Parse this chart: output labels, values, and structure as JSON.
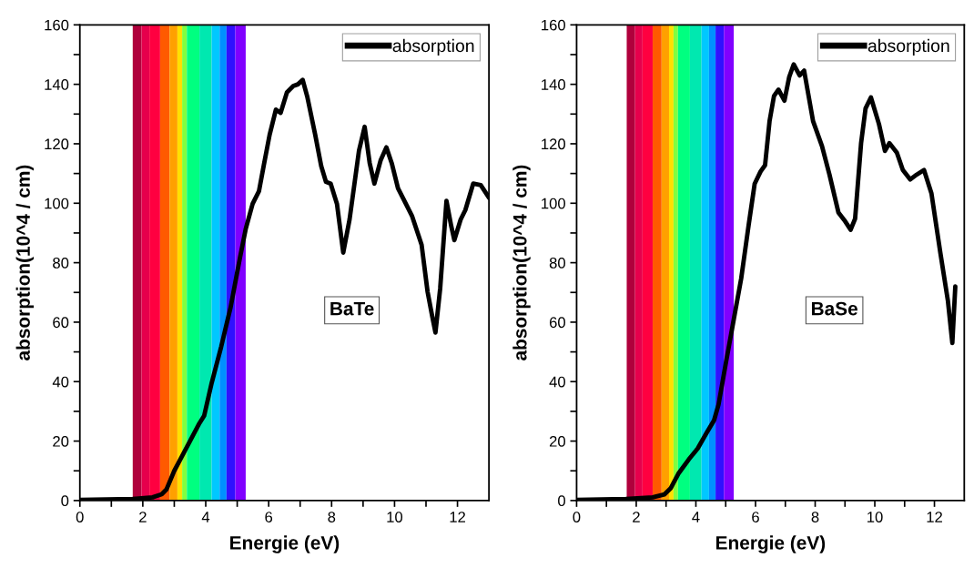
{
  "chart_data": [
    {
      "type": "line",
      "xlabel": "Energie (eV)",
      "ylabel": "absorption(10^4 / cm)",
      "annotations": [
        "BaTe"
      ],
      "legend": "top right",
      "grid": false,
      "line_style": "solid",
      "marker": "none",
      "xlim": [
        0,
        13
      ],
      "ylim": [
        0,
        160
      ],
      "xticks": [
        0,
        {
          "value": 1,
          "label": null
        },
        2,
        {
          "value": 3,
          "label": null
        },
        4,
        {
          "value": 5,
          "label": null
        },
        6,
        {
          "value": 7,
          "label": null
        },
        8,
        {
          "value": 9,
          "label": null
        },
        10,
        {
          "value": 11,
          "label": null
        },
        12
      ],
      "yticks": [
        0,
        {
          "value": 10,
          "label": null
        },
        20,
        {
          "value": 30,
          "label": null
        },
        40,
        {
          "value": 50,
          "label": null
        },
        60,
        {
          "value": 70,
          "label": null
        },
        80,
        {
          "value": 90,
          "label": null
        },
        100,
        {
          "value": 110,
          "label": null
        },
        120,
        {
          "value": 130,
          "label": null
        },
        140,
        {
          "value": 150,
          "label": null
        },
        160
      ],
      "bands": [
        {
          "axis": "x",
          "from": 1.68,
          "to": 1.96,
          "color": "#b0003c"
        },
        {
          "axis": "x",
          "from": 1.96,
          "to": 2.21,
          "color": "#e6004c"
        },
        {
          "axis": "x",
          "from": 2.21,
          "to": 2.55,
          "color": "#ff0040"
        },
        {
          "axis": "x",
          "from": 2.55,
          "to": 2.85,
          "color": "#ff5a00"
        },
        {
          "axis": "x",
          "from": 2.85,
          "to": 3.1,
          "color": "#ffa000"
        },
        {
          "axis": "x",
          "from": 3.1,
          "to": 3.25,
          "color": "#ffe000"
        },
        {
          "axis": "x",
          "from": 3.25,
          "to": 3.4,
          "color": "#80ff40"
        },
        {
          "axis": "x",
          "from": 3.4,
          "to": 3.8,
          "color": "#00ff80"
        },
        {
          "axis": "x",
          "from": 3.8,
          "to": 4.19,
          "color": "#00e8b0"
        },
        {
          "axis": "x",
          "from": 4.19,
          "to": 4.44,
          "color": "#00c8ff"
        },
        {
          "axis": "x",
          "from": 4.44,
          "to": 4.66,
          "color": "#0090ff"
        },
        {
          "axis": "x",
          "from": 4.66,
          "to": 4.94,
          "color": "#3010ff"
        },
        {
          "axis": "x",
          "from": 4.94,
          "to": 5.27,
          "color": "#8000ff"
        }
      ],
      "series": [
        {
          "name": "absorption",
          "color": "#000000",
          "x": [
            0,
            1.68,
            2.31,
            2.6,
            2.75,
            3.0,
            3.4,
            3.8,
            3.95,
            4.19,
            4.49,
            4.79,
            5.09,
            5.27,
            5.49,
            5.69,
            5.84,
            6.03,
            6.23,
            6.38,
            6.58,
            6.78,
            6.93,
            7.08,
            7.23,
            7.48,
            7.67,
            7.82,
            7.97,
            8.17,
            8.37,
            8.57,
            8.87,
            9.05,
            9.21,
            9.36,
            9.56,
            9.74,
            9.91,
            10.11,
            10.36,
            10.56,
            10.76,
            10.86,
            11.05,
            11.2,
            11.3,
            11.45,
            11.65,
            11.8,
            11.9,
            12.1,
            12.25,
            12.5,
            12.74,
            13.0
          ],
          "values": [
            0.2,
            0.5,
            1.1,
            2.1,
            3.7,
            10,
            18,
            26,
            28.5,
            39.6,
            51.7,
            65,
            81.8,
            91.3,
            99.8,
            104,
            112.5,
            123,
            131.5,
            130.4,
            137.3,
            139.4,
            140,
            141.5,
            135.7,
            123,
            112.5,
            107.2,
            106.6,
            99.8,
            83.4,
            94.5,
            117.7,
            125.7,
            113.5,
            106.6,
            114.5,
            118.8,
            113.5,
            105,
            99.8,
            95.6,
            89.2,
            86,
            70.2,
            61.8,
            56.5,
            71.3,
            100.8,
            92.4,
            87.6,
            94.5,
            97.7,
            106.6,
            106.1,
            101.9
          ]
        }
      ]
    },
    {
      "type": "line",
      "xlabel": "Energie (eV)",
      "ylabel": "absorption(10^4 / cm)",
      "annotations": [
        "BaSe"
      ],
      "legend": "top right",
      "grid": false,
      "line_style": "solid",
      "marker": "none",
      "xlim": [
        0,
        13
      ],
      "ylim": [
        0,
        160
      ],
      "xticks": [
        0,
        {
          "value": 1,
          "label": null
        },
        2,
        {
          "value": 3,
          "label": null
        },
        4,
        {
          "value": 5,
          "label": null
        },
        6,
        {
          "value": 7,
          "label": null
        },
        8,
        {
          "value": 9,
          "label": null
        },
        10,
        {
          "value": 11,
          "label": null
        },
        12
      ],
      "yticks": [
        0,
        {
          "value": 10,
          "label": null
        },
        20,
        {
          "value": 30,
          "label": null
        },
        40,
        {
          "value": 50,
          "label": null
        },
        60,
        {
          "value": 70,
          "label": null
        },
        80,
        {
          "value": 90,
          "label": null
        },
        100,
        {
          "value": 110,
          "label": null
        },
        120,
        {
          "value": 130,
          "label": null
        },
        140,
        {
          "value": 150,
          "label": null
        },
        160
      ],
      "bands": [
        {
          "axis": "x",
          "from": 1.68,
          "to": 1.96,
          "color": "#b0003c"
        },
        {
          "axis": "x",
          "from": 1.96,
          "to": 2.21,
          "color": "#e6004c"
        },
        {
          "axis": "x",
          "from": 2.21,
          "to": 2.55,
          "color": "#ff0040"
        },
        {
          "axis": "x",
          "from": 2.55,
          "to": 2.85,
          "color": "#ff5a00"
        },
        {
          "axis": "x",
          "from": 2.85,
          "to": 3.1,
          "color": "#ffa000"
        },
        {
          "axis": "x",
          "from": 3.1,
          "to": 3.25,
          "color": "#ffe000"
        },
        {
          "axis": "x",
          "from": 3.25,
          "to": 3.4,
          "color": "#80ff40"
        },
        {
          "axis": "x",
          "from": 3.4,
          "to": 3.8,
          "color": "#00ff80"
        },
        {
          "axis": "x",
          "from": 3.8,
          "to": 4.19,
          "color": "#00e8b0"
        },
        {
          "axis": "x",
          "from": 4.19,
          "to": 4.44,
          "color": "#00c8ff"
        },
        {
          "axis": "x",
          "from": 4.44,
          "to": 4.66,
          "color": "#0090ff"
        },
        {
          "axis": "x",
          "from": 4.66,
          "to": 4.94,
          "color": "#3010ff"
        },
        {
          "axis": "x",
          "from": 4.94,
          "to": 5.27,
          "color": "#8000ff"
        }
      ],
      "series": [
        {
          "name": "absorption",
          "color": "#000000",
          "x": [
            0,
            1.65,
            2.55,
            2.95,
            3.16,
            3.41,
            3.76,
            4.06,
            4.36,
            4.61,
            4.76,
            5.02,
            5.27,
            5.52,
            5.77,
            5.97,
            6.17,
            6.32,
            6.47,
            6.62,
            6.77,
            6.97,
            7.13,
            7.28,
            7.48,
            7.63,
            7.78,
            7.93,
            8.23,
            8.48,
            8.78,
            8.98,
            9.19,
            9.34,
            9.54,
            9.69,
            9.87,
            10.14,
            10.34,
            10.49,
            10.74,
            10.94,
            11.19,
            11.4,
            11.65,
            11.9,
            12.2,
            12.45,
            12.6,
            12.7
          ],
          "values": [
            0.2,
            0.5,
            1.1,
            2.1,
            4.2,
            9,
            13.8,
            17.5,
            22.8,
            27,
            32.3,
            47.1,
            60.9,
            74.7,
            92.7,
            106.5,
            110.7,
            112.8,
            127.6,
            136.1,
            138.2,
            134.5,
            142.5,
            146.7,
            143,
            144.6,
            136.1,
            127.6,
            119.2,
            109.6,
            96.9,
            94.3,
            91.1,
            94.8,
            120.2,
            131.9,
            135.6,
            126.6,
            117.6,
            120.2,
            117,
            111.2,
            108,
            109.6,
            111.2,
            103.3,
            83.2,
            67.3,
            53,
            72
          ]
        }
      ]
    }
  ]
}
